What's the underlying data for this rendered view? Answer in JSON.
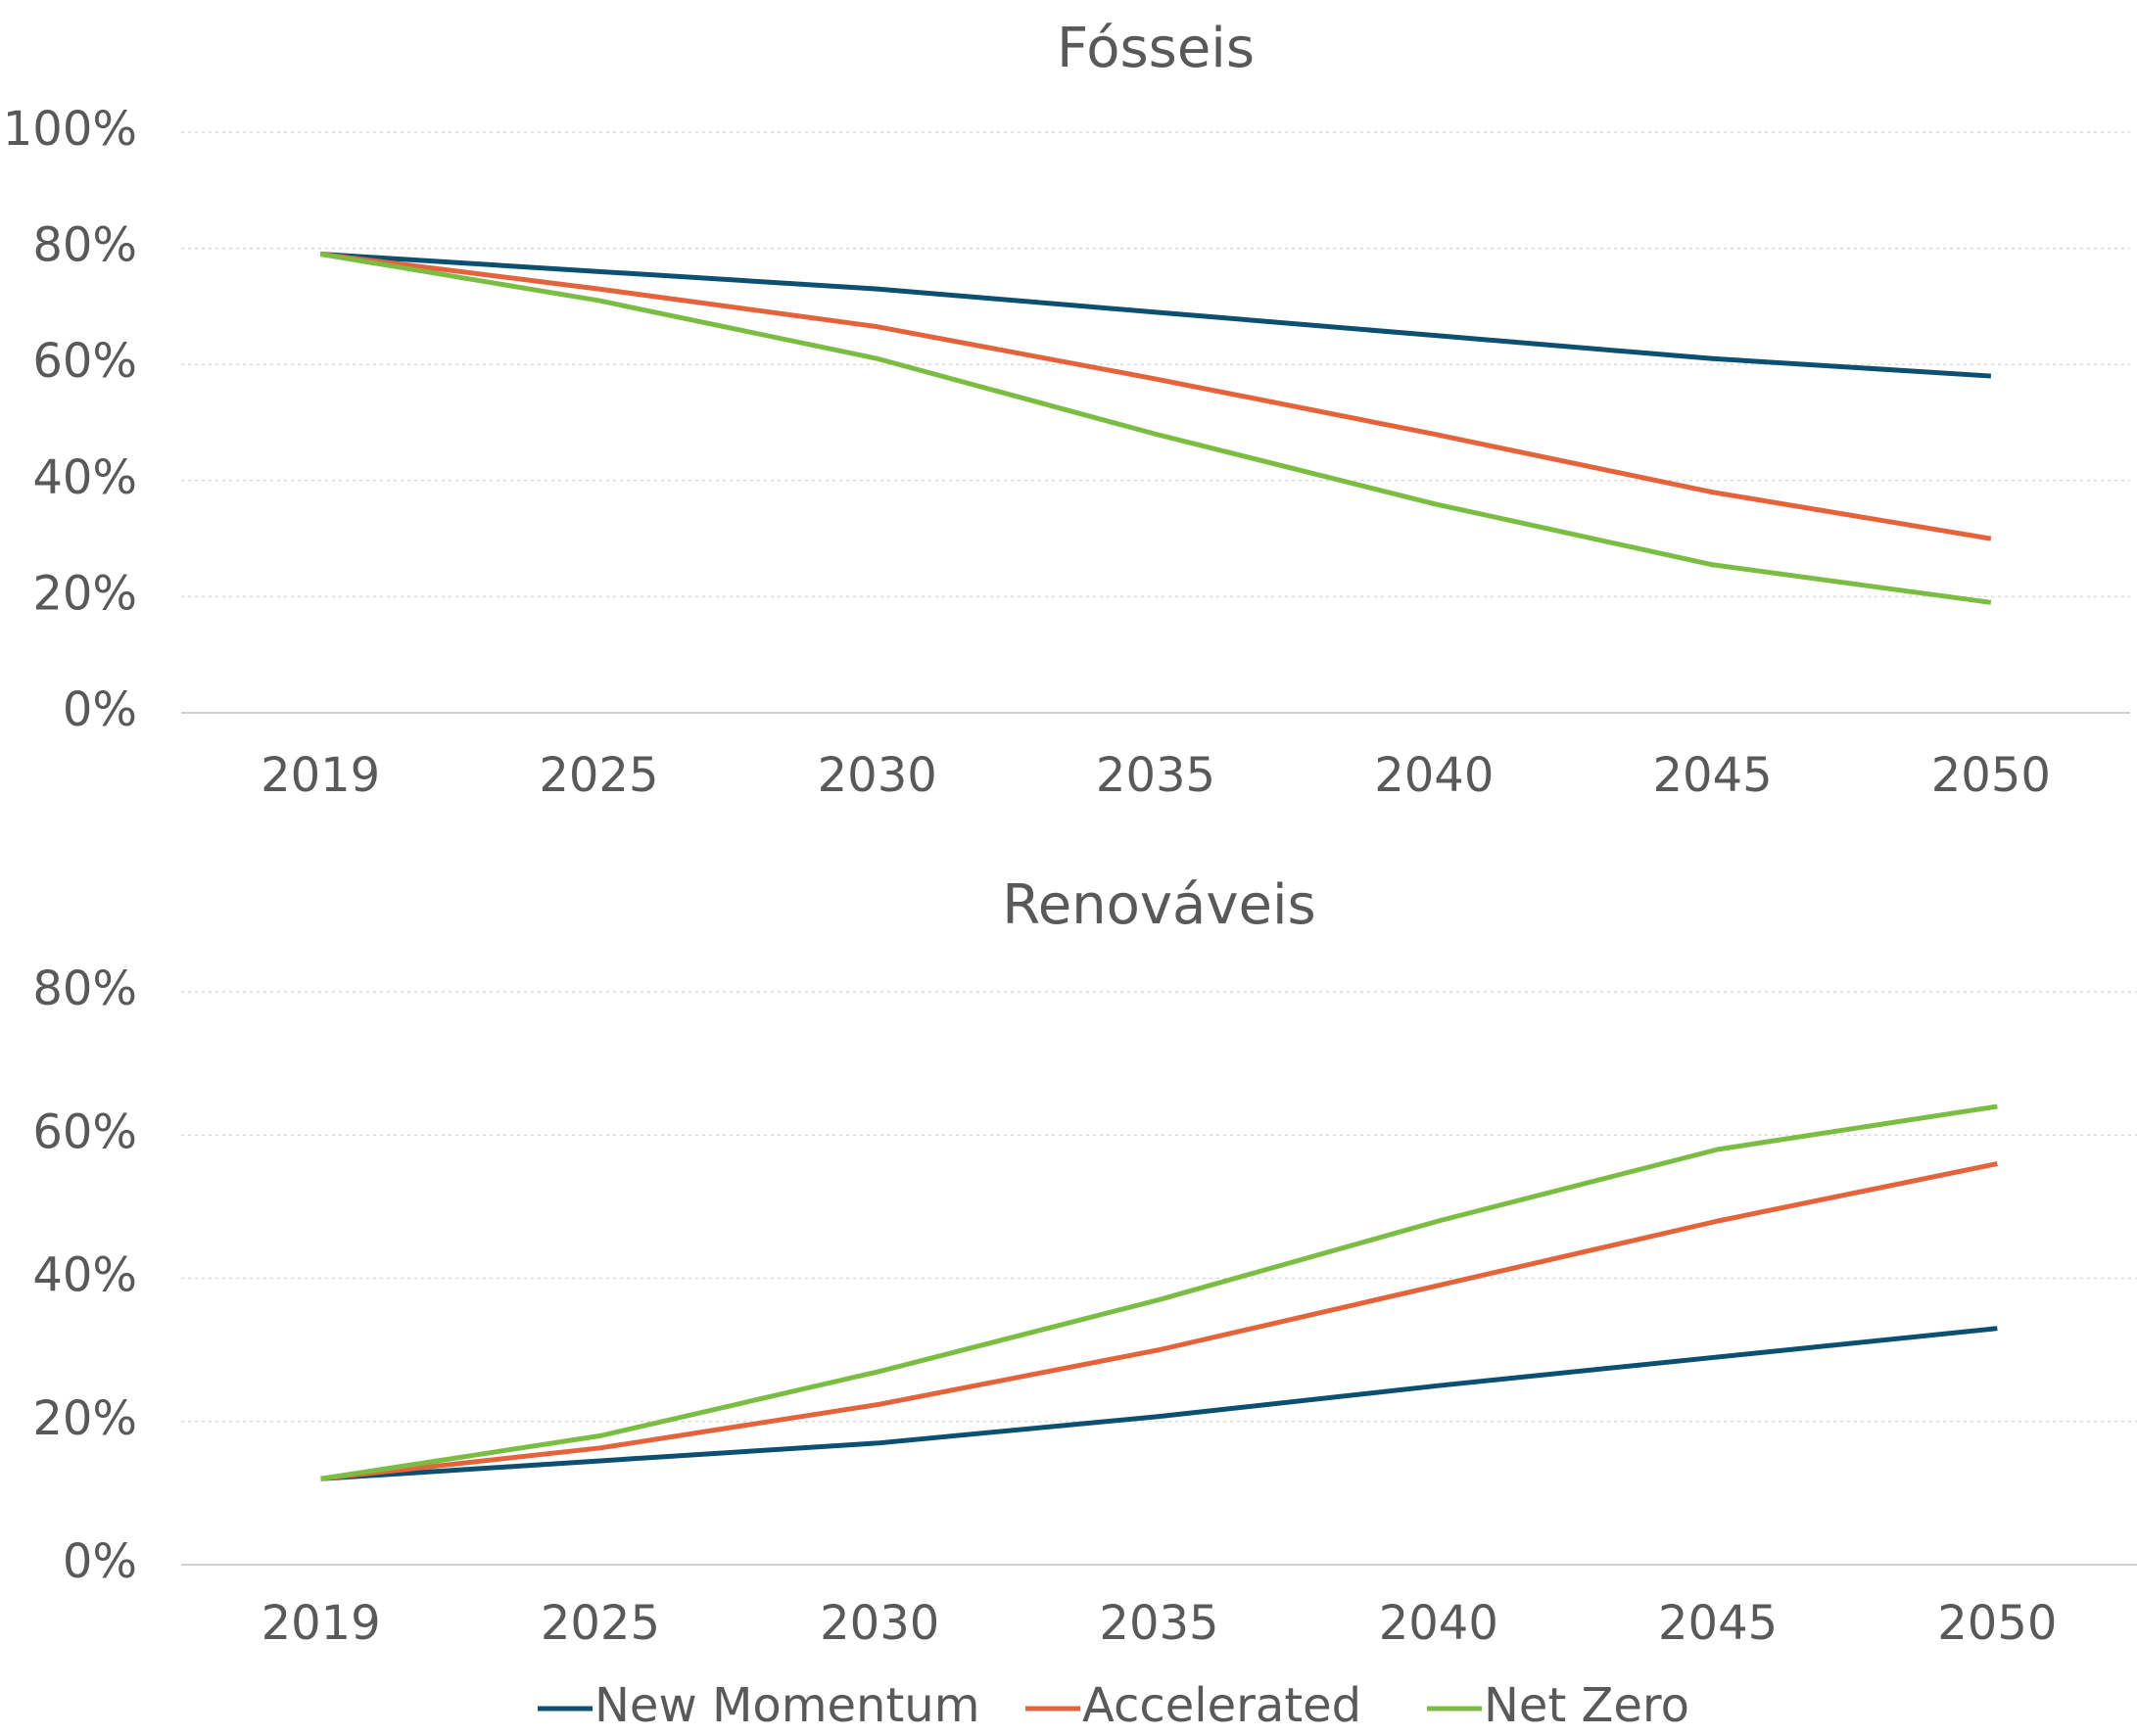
{
  "chart_data": [
    {
      "type": "line",
      "title": "Fósseis",
      "categories": [
        "2019",
        "2025",
        "2030",
        "2035",
        "2040",
        "2045",
        "2050"
      ],
      "series": [
        {
          "color": "#0b4f71",
          "values": [
            79,
            76,
            73,
            69,
            65,
            61,
            58
          ]
        },
        {
          "color": "#e5633a",
          "values": [
            79,
            73,
            66.5,
            57.5,
            48,
            38,
            30
          ]
        },
        {
          "color": "#7bbd42",
          "values": [
            79,
            71,
            61,
            48,
            36,
            25.5,
            19
          ]
        }
      ],
      "ylim": [
        0,
        100
      ],
      "yticks": [
        {
          "value": 0,
          "label": "0%"
        },
        {
          "value": 20,
          "label": "20%"
        },
        {
          "value": 40,
          "label": "40%"
        },
        {
          "value": 60,
          "label": "60%"
        },
        {
          "value": 80,
          "label": "80%"
        },
        {
          "value": 100,
          "label": "100%"
        }
      ],
      "grid": true
    },
    {
      "type": "line",
      "title": "Renováveis",
      "categories": [
        "2019",
        "2025",
        "2030",
        "2035",
        "2040",
        "2045",
        "2050"
      ],
      "series": [
        {
          "name": "New Momentum",
          "color": "#0b4f71",
          "values": [
            12,
            14.5,
            17,
            20.7,
            25,
            29,
            33
          ]
        },
        {
          "name": "Accelerated",
          "color": "#e5633a",
          "values": [
            12,
            16.3,
            22.4,
            30,
            39,
            48,
            56
          ]
        },
        {
          "name": "Net Zero",
          "color": "#7bbd42",
          "values": [
            12,
            18,
            27,
            37,
            48,
            58,
            64
          ]
        }
      ],
      "ylim": [
        0,
        80
      ],
      "yticks": [
        {
          "value": 0,
          "label": "0%"
        },
        {
          "value": 20,
          "label": "20%"
        },
        {
          "value": 40,
          "label": "40%"
        },
        {
          "value": 60,
          "label": "60%"
        },
        {
          "value": 80,
          "label": "80%"
        }
      ],
      "grid": true
    }
  ]
}
